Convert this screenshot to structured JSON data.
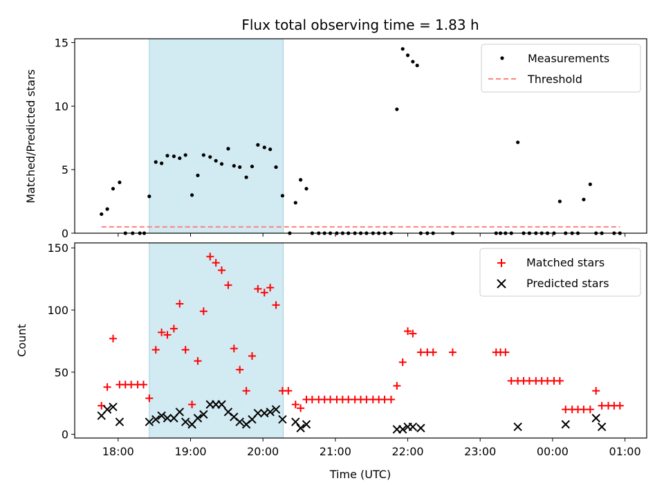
{
  "colors": {
    "span": "#add8e6",
    "matched": "#ff0000",
    "predicted": "#000000",
    "measure": "#000000",
    "threshold": "#ff7f7f"
  },
  "chart_data": [
    {
      "type": "scatter",
      "title": "Flux total observing time = 1.83 h",
      "ylabel": "Matched/Predicted stars",
      "xlabel": "",
      "xlim": [
        17.4,
        25.3
      ],
      "ylim": [
        0,
        15.3
      ],
      "yticks": [
        0,
        5,
        10,
        15
      ],
      "ytick_labels": [
        "0",
        "5",
        "10",
        "15"
      ],
      "shaded_span": [
        18.43,
        20.28
      ],
      "legend": {
        "position": "upper-right",
        "entries": [
          "Measurements",
          "Threshold"
        ]
      },
      "series": [
        {
          "name": "Measurements",
          "x": [
            17.77,
            17.85,
            17.93,
            18.02,
            18.1,
            18.2,
            18.3,
            18.36,
            18.43,
            18.52,
            18.6,
            18.68,
            18.77,
            18.85,
            18.93,
            19.02,
            19.1,
            19.18,
            19.27,
            19.35,
            19.43,
            19.52,
            19.6,
            19.68,
            19.77,
            19.85,
            19.93,
            20.02,
            20.1,
            20.18,
            20.27,
            20.37,
            20.45,
            20.52,
            20.6,
            20.68,
            20.77,
            20.85,
            20.93,
            21.02,
            21.1,
            21.18,
            21.27,
            21.35,
            21.43,
            21.52,
            21.6,
            21.68,
            21.77,
            21.85,
            21.93,
            22.0,
            22.07,
            22.13,
            22.18,
            22.27,
            22.35,
            22.62,
            23.22,
            23.28,
            23.35,
            23.43,
            23.52,
            23.6,
            23.68,
            23.77,
            23.85,
            23.93,
            24.02,
            24.1,
            24.18,
            24.27,
            24.35,
            24.43,
            24.52,
            24.6,
            24.68,
            24.85,
            24.93
          ],
          "y": [
            1.5,
            1.9,
            3.5,
            4.0,
            0,
            0,
            0,
            0,
            2.9,
            5.6,
            5.5,
            6.1,
            6.05,
            5.9,
            6.15,
            3.0,
            4.55,
            6.15,
            6.0,
            5.7,
            5.45,
            6.65,
            5.3,
            5.2,
            4.4,
            5.25,
            6.95,
            6.75,
            6.6,
            5.2,
            2.95,
            0,
            2.4,
            4.2,
            3.5,
            0,
            0,
            0,
            0,
            0,
            0,
            0,
            0,
            0,
            0,
            0,
            0,
            0,
            0,
            9.75,
            14.5,
            14.0,
            13.5,
            13.2,
            0,
            0,
            0,
            0,
            0,
            0,
            0,
            0,
            7.15,
            0,
            0,
            0,
            0,
            0,
            0,
            2.5,
            0,
            0,
            0,
            2.65,
            3.85,
            0,
            0,
            0,
            0
          ],
          "marker": "dot"
        },
        {
          "name": "Threshold",
          "x": [
            17.77,
            24.93
          ],
          "y": [
            0.5,
            0.5
          ],
          "style": "dashed"
        }
      ]
    },
    {
      "type": "scatter",
      "title": "",
      "ylabel": "Count",
      "xlabel": "Time (UTC)",
      "xlim": [
        17.4,
        25.3
      ],
      "ylim": [
        -3,
        154
      ],
      "yticks": [
        0,
        50,
        100,
        150
      ],
      "ytick_labels": [
        "0",
        "50",
        "100",
        "150"
      ],
      "xticks": [
        18,
        19,
        20,
        21,
        22,
        23,
        24,
        25
      ],
      "xtick_labels": [
        "18:00",
        "19:00",
        "20:00",
        "21:00",
        "22:00",
        "23:00",
        "00:00",
        "01:00"
      ],
      "shaded_span": [
        18.43,
        20.28
      ],
      "legend": {
        "position": "upper-right",
        "entries": [
          "Matched stars",
          "Predicted stars"
        ]
      },
      "series": [
        {
          "name": "Matched stars",
          "marker": "plus",
          "x": [
            17.77,
            17.85,
            17.93,
            18.02,
            18.1,
            18.18,
            18.27,
            18.35,
            18.43,
            18.52,
            18.6,
            18.68,
            18.77,
            18.85,
            18.93,
            19.02,
            19.1,
            19.18,
            19.27,
            19.35,
            19.43,
            19.52,
            19.6,
            19.68,
            19.77,
            19.85,
            19.93,
            20.02,
            20.1,
            20.18,
            20.27,
            20.35,
            20.45,
            20.52,
            20.6,
            20.68,
            20.77,
            20.85,
            20.93,
            21.02,
            21.1,
            21.18,
            21.27,
            21.35,
            21.43,
            21.52,
            21.6,
            21.68,
            21.77,
            21.85,
            21.93,
            22.0,
            22.07,
            22.18,
            22.27,
            22.35,
            22.62,
            23.22,
            23.28,
            23.35,
            23.43,
            23.52,
            23.6,
            23.68,
            23.77,
            23.85,
            23.93,
            24.02,
            24.1,
            24.18,
            24.27,
            24.35,
            24.43,
            24.52,
            24.6,
            24.68,
            24.77,
            24.85,
            24.93
          ],
          "y": [
            23,
            38,
            77,
            40,
            40,
            40,
            40,
            40,
            29,
            68,
            82,
            80,
            85,
            105,
            68,
            24,
            59,
            99,
            143,
            138,
            132,
            120,
            69,
            52,
            35,
            63,
            117,
            114,
            118,
            104,
            35,
            35,
            24,
            21,
            28,
            28,
            28,
            28,
            28,
            28,
            28,
            28,
            28,
            28,
            28,
            28,
            28,
            28,
            28,
            39,
            58,
            83,
            81,
            66,
            66,
            66,
            66,
            66,
            66,
            66,
            43,
            43,
            43,
            43,
            43,
            43,
            43,
            43,
            43,
            20,
            20,
            20,
            20,
            20,
            35,
            23,
            23,
            23,
            23
          ]
        },
        {
          "name": "Predicted stars",
          "marker": "x",
          "x": [
            17.77,
            17.85,
            17.93,
            18.02,
            18.43,
            18.52,
            18.6,
            18.68,
            18.77,
            18.85,
            18.93,
            19.02,
            19.1,
            19.18,
            19.27,
            19.35,
            19.43,
            19.52,
            19.6,
            19.68,
            19.77,
            19.85,
            19.93,
            20.02,
            20.1,
            20.18,
            20.27,
            20.45,
            20.52,
            20.6,
            21.85,
            21.93,
            22.0,
            22.07,
            22.18,
            23.52,
            24.18,
            24.6,
            24.68
          ],
          "y": [
            15,
            20,
            22,
            10,
            10,
            12,
            15,
            13,
            13,
            18,
            10,
            8,
            13,
            16,
            24,
            24,
            24,
            18,
            14,
            10,
            8,
            12,
            17,
            17,
            18,
            20,
            12,
            10,
            5,
            8,
            4,
            4,
            6,
            6,
            5,
            6,
            8,
            13,
            6
          ]
        }
      ]
    }
  ]
}
